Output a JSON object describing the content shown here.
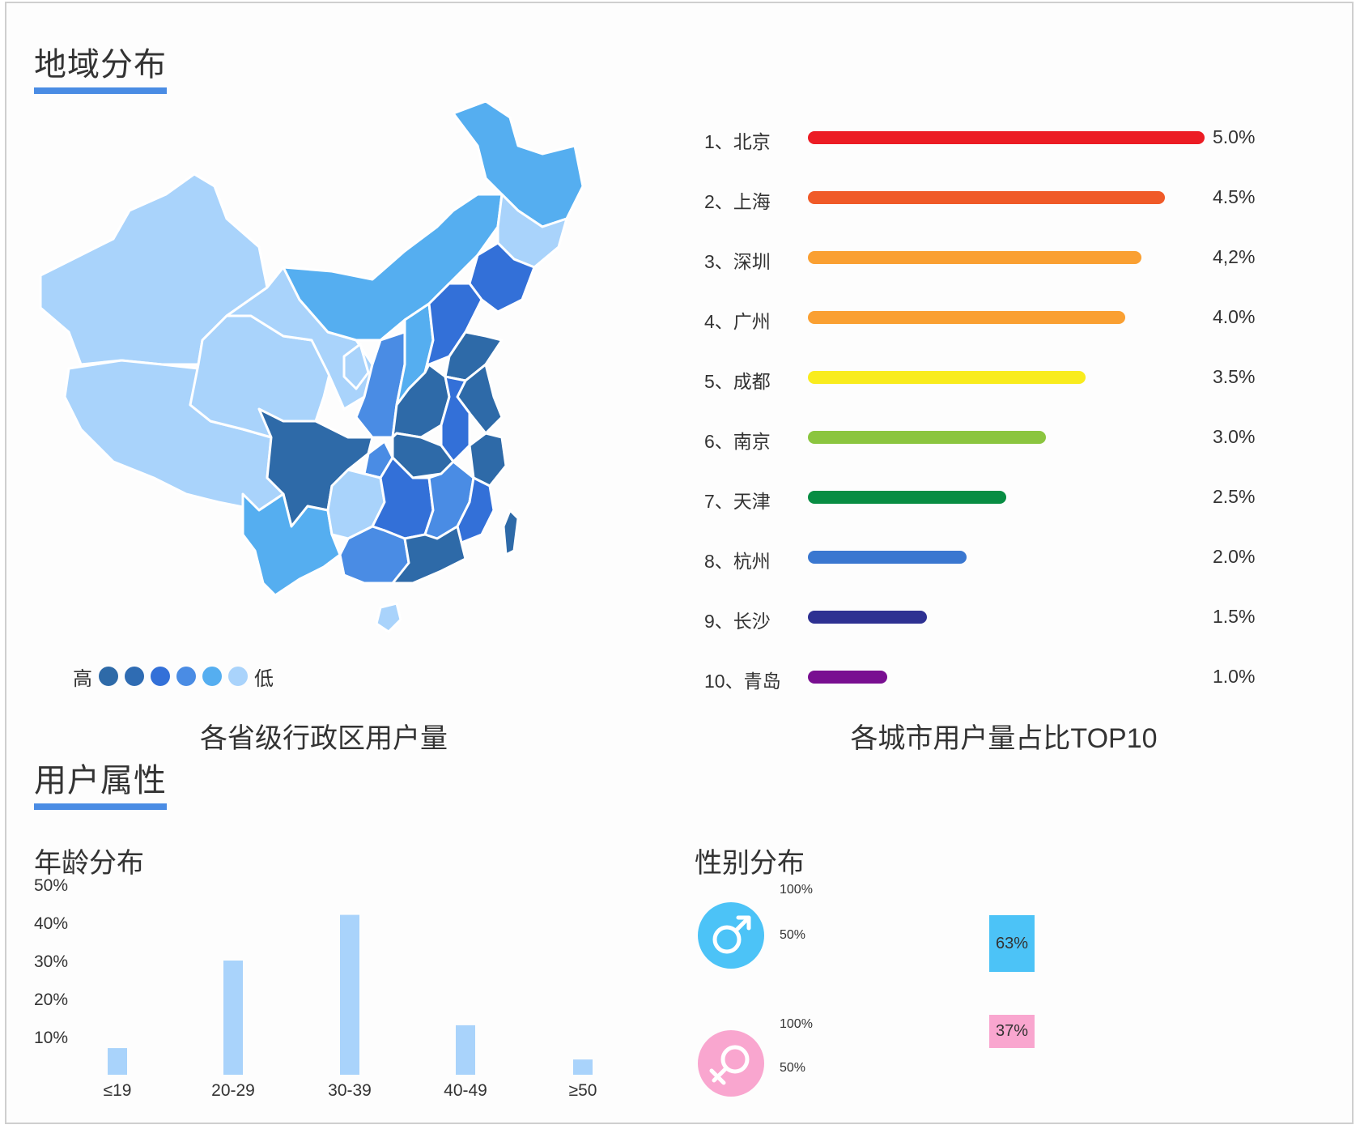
{
  "sections": {
    "region_title": "地域分布",
    "user_attr_title": "用户属性"
  },
  "map": {
    "caption": "各省级行政区用户量",
    "legend_high": "高",
    "legend_low": "低",
    "legend_colors": [
      "#2e6aa8",
      "#2f6cb3",
      "#3370d8",
      "#4a8ce4",
      "#55aef0",
      "#a9d3fb"
    ]
  },
  "chart_data": [
    {
      "type": "bar",
      "orientation": "horizontal",
      "title": "各城市用户量占比TOP10",
      "categories": [
        "1、北京",
        "2、上海",
        "3、深圳",
        "4、广州",
        "5、成都",
        "6、南京",
        "7、天津",
        "8、杭州",
        "9、长沙",
        "10、青岛"
      ],
      "values": [
        5.0,
        4.5,
        4.2,
        4.0,
        3.5,
        3.0,
        2.5,
        2.0,
        1.5,
        1.0
      ],
      "labels": [
        "5.0%",
        "4.5%",
        "4,2%",
        "4.0%",
        "3.5%",
        "3.0%",
        "2.5%",
        "2.0%",
        "1.5%",
        "1.0%"
      ],
      "colors": [
        "#ec1c24",
        "#f05a28",
        "#faa032",
        "#faa032",
        "#f9ec1e",
        "#8bc53f",
        "#088d43",
        "#3a77d0",
        "#2e3192",
        "#790f91"
      ],
      "xlim": [
        0,
        5.0
      ]
    },
    {
      "type": "bar",
      "title": "年龄分布",
      "categories": [
        "≤19",
        "20-29",
        "30-39",
        "40-49",
        "≥50"
      ],
      "values": [
        7,
        30,
        42,
        13,
        4
      ],
      "yticks": [
        "50%",
        "40%",
        "30%",
        "20%",
        "10%"
      ],
      "ylim": [
        0,
        50
      ],
      "color": "#a9d3fb"
    },
    {
      "type": "bar",
      "title": "性别分布",
      "categories": [
        "male",
        "female"
      ],
      "values": [
        63,
        37
      ],
      "labels": [
        "63%",
        "37%"
      ],
      "ticks": [
        "100%",
        "50%"
      ],
      "colors": [
        "#4cc3f7",
        "#f9a6cf"
      ]
    }
  ],
  "icons": {
    "male": "male-icon",
    "female": "female-icon"
  }
}
